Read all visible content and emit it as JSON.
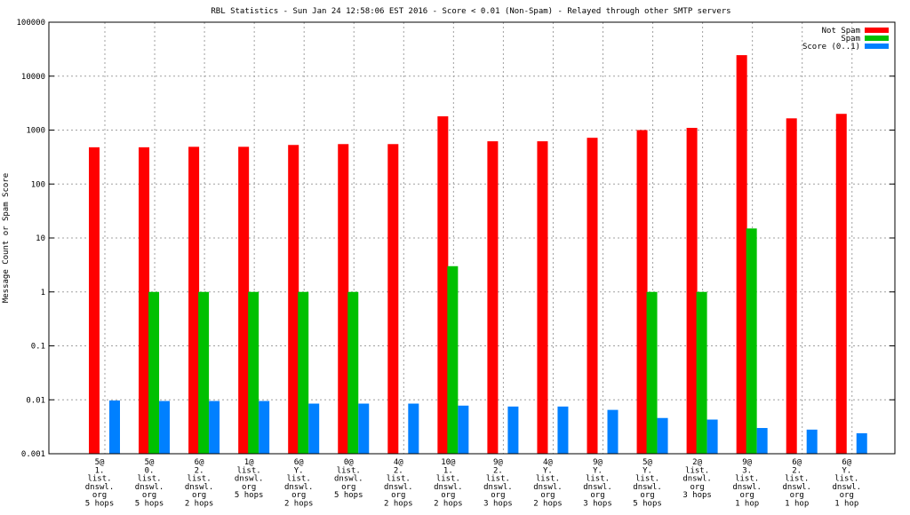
{
  "chart_data": {
    "type": "bar",
    "title": "RBL Statistics - Sun Jan 24 12:58:06 EST 2016 - Score < 0.01 (Non-Spam) - Relayed through other SMTP servers",
    "xlabel": "",
    "ylabel": "Message Count or Spam Score",
    "yscale": "log",
    "ylim": [
      0.001,
      100000
    ],
    "yticks": [
      "0.001",
      "0.01",
      "0.1",
      "1",
      "10",
      "100",
      "1000",
      "10000",
      "100000"
    ],
    "grid": true,
    "legend_position": "top-right",
    "categories": [
      [
        "5@",
        "1.",
        "list.",
        "dnswl.",
        "org",
        "5 hops"
      ],
      [
        "5@",
        "0.",
        "list.",
        "dnswl.",
        "org",
        "5 hops"
      ],
      [
        "6@",
        "2.",
        "list.",
        "dnswl.",
        "org",
        "2 hops"
      ],
      [
        "1@",
        "list.",
        "dnswl.",
        "org",
        "5 hops"
      ],
      [
        "6@",
        "Y.",
        "list.",
        "dnswl.",
        "org",
        "2 hops"
      ],
      [
        "0@",
        "list.",
        "dnswl.",
        "org",
        "5 hops"
      ],
      [
        "4@",
        "2.",
        "list.",
        "dnswl.",
        "org",
        "2 hops"
      ],
      [
        "10@",
        "1.",
        "list.",
        "dnswl.",
        "org",
        "2 hops"
      ],
      [
        "9@",
        "2.",
        "list.",
        "dnswl.",
        "org",
        "3 hops"
      ],
      [
        "4@",
        "Y.",
        "list.",
        "dnswl.",
        "org",
        "2 hops"
      ],
      [
        "9@",
        "Y.",
        "list.",
        "dnswl.",
        "org",
        "3 hops"
      ],
      [
        "5@",
        "Y.",
        "list.",
        "dnswl.",
        "org",
        "5 hops"
      ],
      [
        "2@",
        "list.",
        "dnswl.",
        "org",
        "3 hops"
      ],
      [
        "9@",
        "3.",
        "list.",
        "dnswl.",
        "org",
        "1 hop"
      ],
      [
        "6@",
        "2.",
        "list.",
        "dnswl.",
        "org",
        "1 hop"
      ],
      [
        "6@",
        "Y.",
        "list.",
        "dnswl.",
        "org",
        "1 hop"
      ]
    ],
    "series": [
      {
        "name": "Not Spam",
        "color": "#ff0000",
        "values": [
          480,
          480,
          490,
          490,
          530,
          550,
          550,
          1800,
          620,
          620,
          720,
          1000,
          1100,
          24500,
          1650,
          2000
        ]
      },
      {
        "name": "Spam",
        "color": "#00c000",
        "values": [
          null,
          1,
          1,
          1,
          1,
          1,
          null,
          3,
          null,
          null,
          null,
          1,
          1,
          15,
          null,
          null
        ]
      },
      {
        "name": "Score (0..1)",
        "color": "#0080ff",
        "values": [
          0.0097,
          0.0095,
          0.0095,
          0.0095,
          0.0085,
          0.0085,
          0.0085,
          0.0078,
          0.0075,
          0.0075,
          0.0065,
          0.0046,
          0.0043,
          0.003,
          0.0028,
          0.0024
        ]
      }
    ]
  }
}
